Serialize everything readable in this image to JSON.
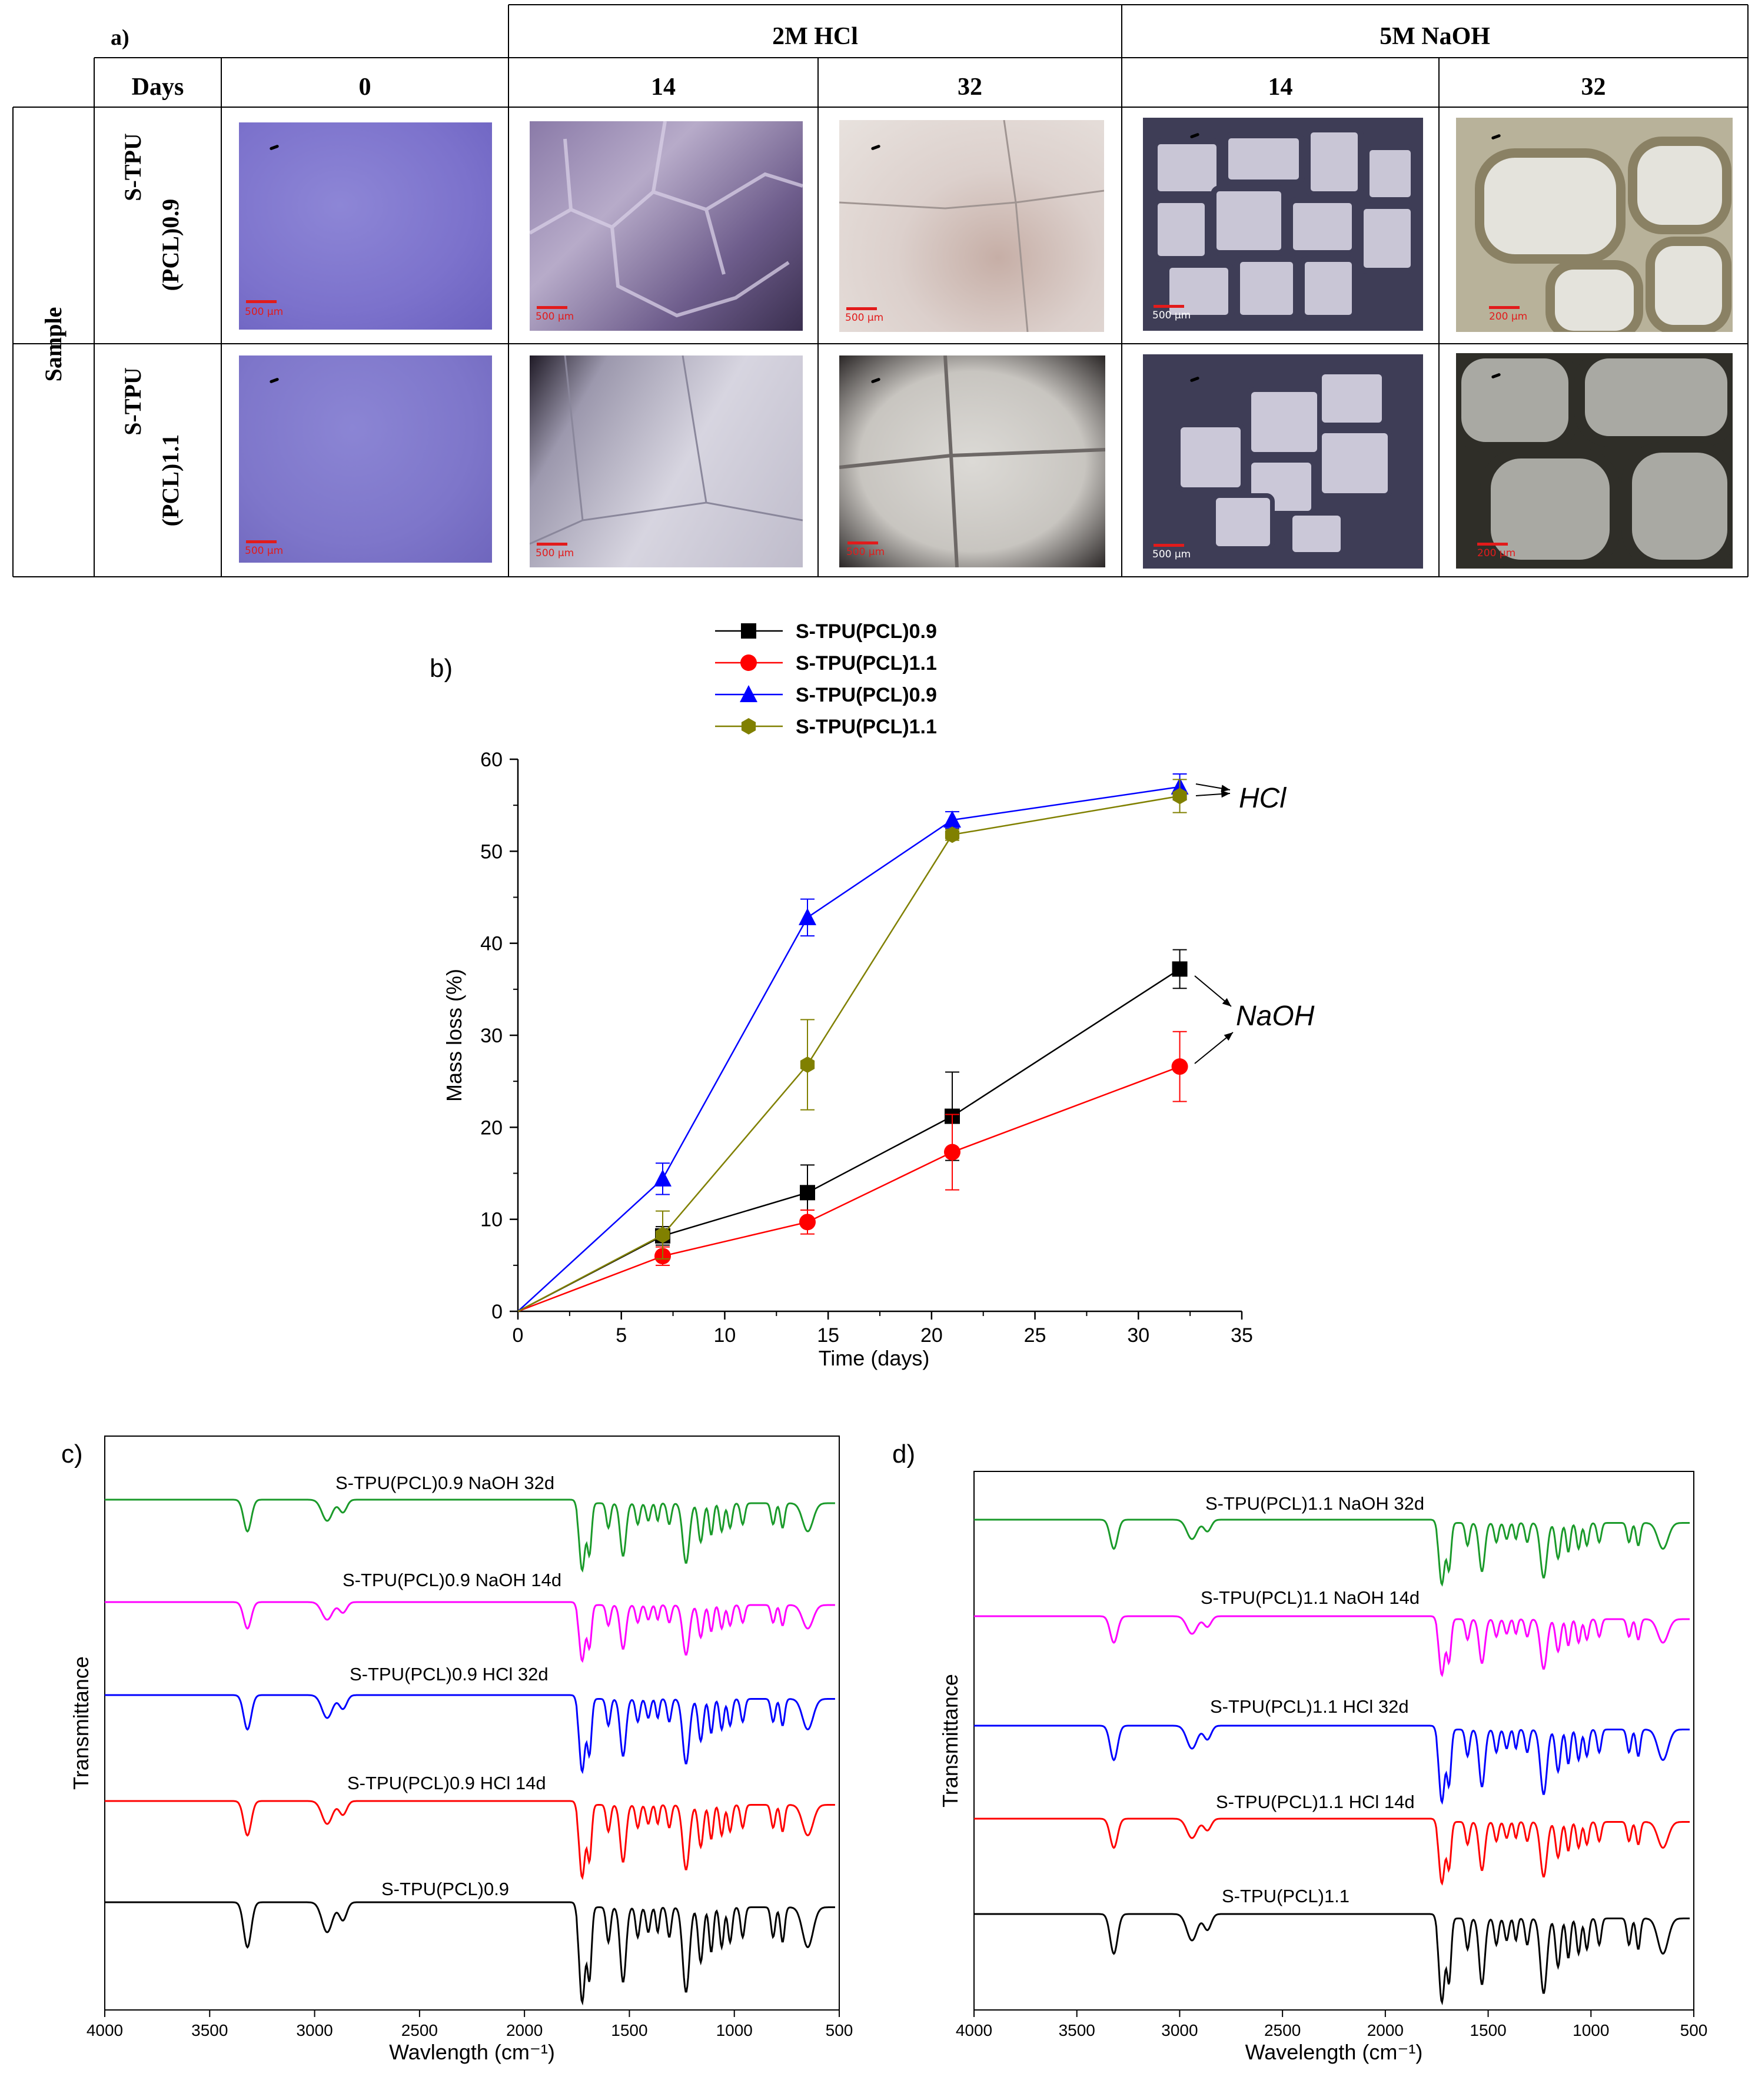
{
  "panel_a": {
    "panel_label": "a)",
    "header_hcl": "2M HCl",
    "header_naoh": "5M NaOH",
    "days_label": "Days",
    "day_values": [
      "0",
      "14",
      "32",
      "14",
      "32"
    ],
    "sample_label": "Sample",
    "row1": {
      "line1": "S-TPU",
      "line2": "(PCL)0.9",
      "scales": [
        "500 μm",
        "500 μm",
        "500 μm",
        "500 μm",
        "200 μm"
      ]
    },
    "row2": {
      "line1": "S-TPU",
      "line2": "(PCL)1.1",
      "scales": [
        "500 μm",
        "500 μm",
        "500 μm",
        "500 μm",
        "200 μm"
      ]
    }
  },
  "panel_b": {
    "panel_label": "b)",
    "annotation_hcl": "HCl",
    "annotation_naoh": "NaOH",
    "colors": {
      "black": "#000000",
      "red": "#ff0000",
      "blue": "#0000ff",
      "olive": "#808000"
    }
  },
  "panel_c": {
    "panel_label": "c)"
  },
  "panel_d": {
    "panel_label": "d)"
  },
  "chart_data": [
    {
      "type": "line",
      "xlabel": "Time (days)",
      "ylabel": "Mass loss (%)",
      "xlim": [
        0,
        35
      ],
      "ylim": [
        0,
        60
      ],
      "xticks": [
        0,
        5,
        10,
        15,
        20,
        25,
        30,
        35
      ],
      "yticks": [
        0,
        10,
        20,
        30,
        40,
        50,
        60
      ],
      "legend_position": "top-center",
      "x": [
        0,
        7,
        14,
        21,
        32
      ],
      "series": [
        {
          "name": "S-TPU(PCL)0.9",
          "color": "#000000",
          "marker": "square",
          "values": [
            0,
            8.2,
            12.9,
            21.2,
            37.2
          ],
          "errors": [
            0,
            1.0,
            3.0,
            4.8,
            2.1
          ]
        },
        {
          "name": "S-TPU(PCL)1.1",
          "color": "#ff0000",
          "marker": "circle",
          "values": [
            0,
            6.0,
            9.7,
            17.3,
            26.6
          ],
          "errors": [
            0,
            1.0,
            1.3,
            4.1,
            3.8
          ]
        },
        {
          "name": "S-TPU(PCL)0.9",
          "color": "#0000ff",
          "marker": "triangle",
          "values": [
            0,
            14.4,
            42.8,
            53.4,
            57.0
          ],
          "errors": [
            0,
            1.7,
            2.0,
            0.9,
            1.4
          ]
        },
        {
          "name": "S-TPU(PCL)1.1",
          "color": "#808000",
          "marker": "hexagon",
          "values": [
            0,
            8.3,
            26.8,
            51.8,
            56.0
          ],
          "errors": [
            0,
            2.6,
            4.9,
            0.6,
            1.8
          ]
        }
      ]
    },
    {
      "type": "line",
      "xlabel": "Wavlength (cm⁻¹)",
      "ylabel": "Transmittance",
      "xlim": [
        4000,
        500
      ],
      "xticks": [
        4000,
        3500,
        3000,
        2500,
        2000,
        1500,
        1000,
        500
      ],
      "series": [
        {
          "name": "S-TPU(PCL)0.9 NaOH 32d",
          "color": "#1a9a2a"
        },
        {
          "name": "S-TPU(PCL)0.9 NaOH 14d",
          "color": "#ff00ff"
        },
        {
          "name": "S-TPU(PCL)0.9 HCl 32d",
          "color": "#0000ff"
        },
        {
          "name": "S-TPU(PCL)0.9 HCl 14d",
          "color": "#ff0000"
        },
        {
          "name": "S-TPU(PCL)0.9",
          "color": "#000000"
        }
      ]
    },
    {
      "type": "line",
      "xlabel": "Wavelength (cm⁻¹)",
      "ylabel": "Transmittance",
      "xlim": [
        4000,
        500
      ],
      "xticks": [
        4000,
        3500,
        3000,
        2500,
        2000,
        1500,
        1000,
        500
      ],
      "series": [
        {
          "name": "S-TPU(PCL)1.1 NaOH 32d",
          "color": "#1a9a2a"
        },
        {
          "name": "S-TPU(PCL)1.1 NaOH 14d",
          "color": "#ff00ff"
        },
        {
          "name": "S-TPU(PCL)1.1 HCl 32d",
          "color": "#0000ff"
        },
        {
          "name": "S-TPU(PCL)1.1 HCl 14d",
          "color": "#ff0000"
        },
        {
          "name": "S-TPU(PCL)1.1",
          "color": "#000000"
        }
      ]
    }
  ]
}
